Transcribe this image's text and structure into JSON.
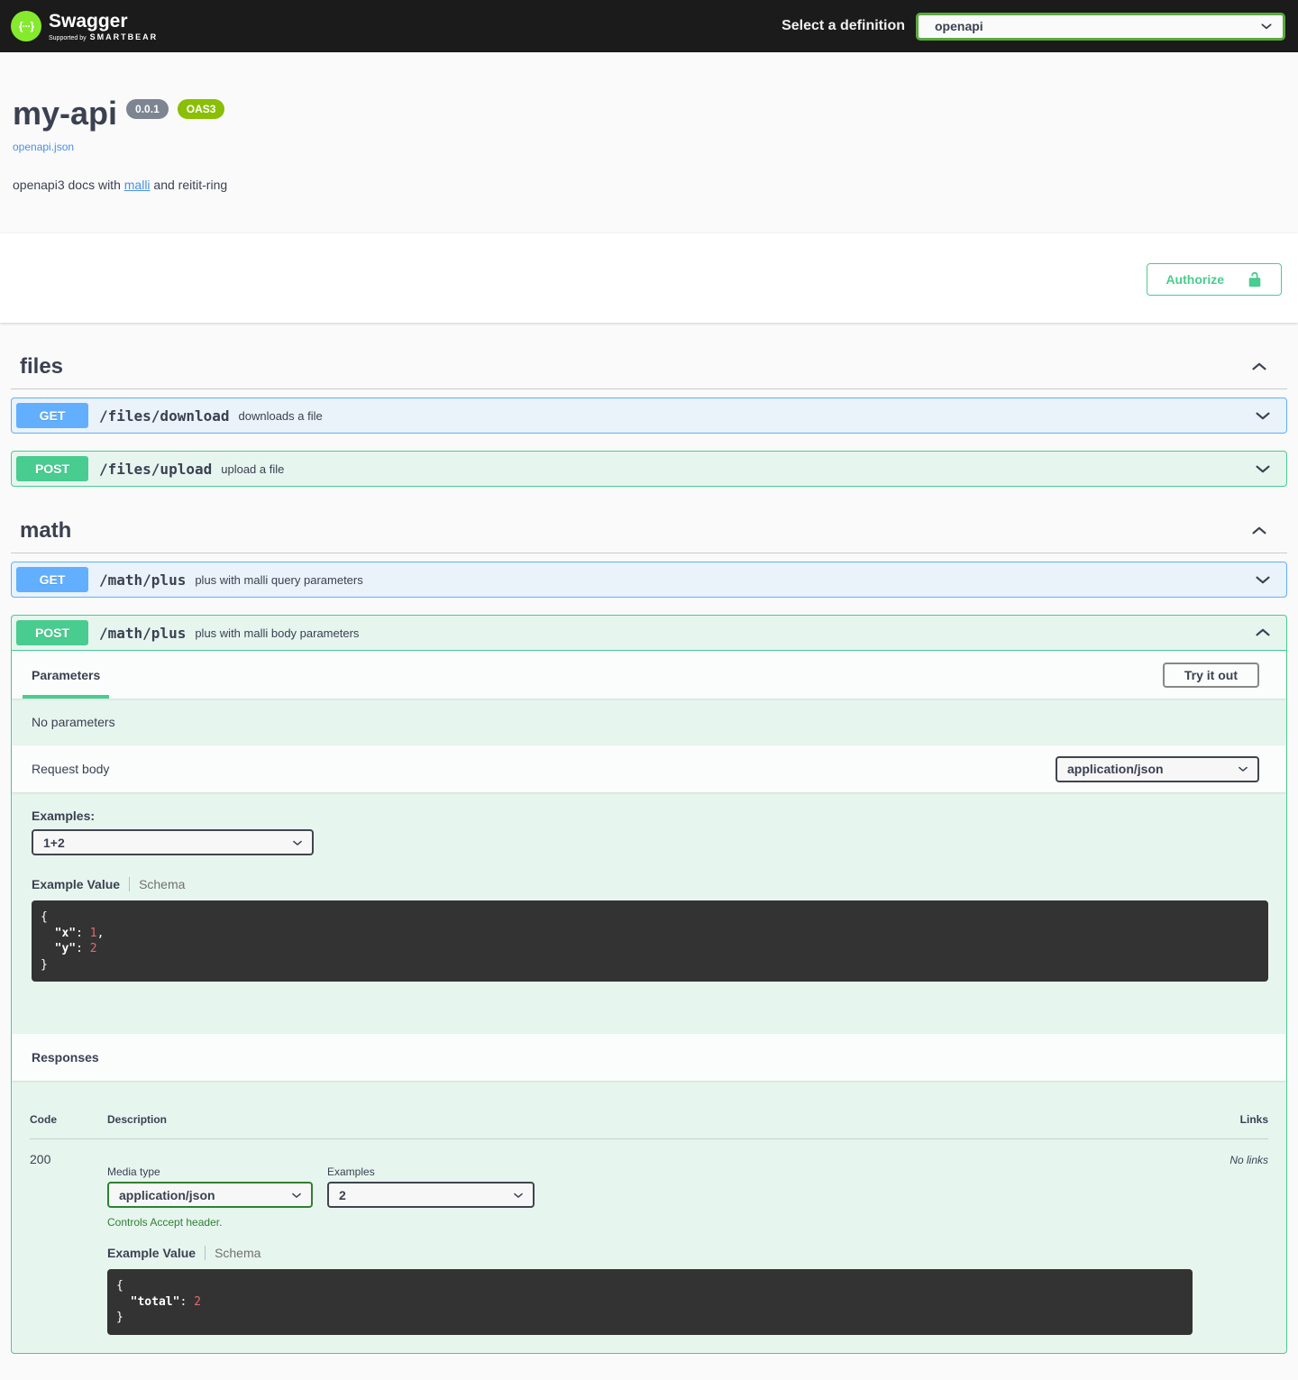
{
  "topbar": {
    "brand": "Swagger",
    "logo_glyph": "{···}",
    "supported_by": "Supported by",
    "supported_brand": "SMARTBEAR",
    "select_label": "Select a definition",
    "selected_definition": "openapi"
  },
  "info": {
    "title": "my-api",
    "version_badge": "0.0.1",
    "oas_badge": "OAS3",
    "spec_link": "openapi.json",
    "description": {
      "prefix": "openapi3 docs with ",
      "link": "malli",
      "suffix": " and reitit-ring"
    }
  },
  "scheme": {
    "authorize_label": "Authorize"
  },
  "sections": [
    {
      "title": "files",
      "endpoints": [
        {
          "method": "GET",
          "path": "/files/download",
          "summary": "downloads a file"
        },
        {
          "method": "POST",
          "path": "/files/upload",
          "summary": "upload a file"
        }
      ]
    },
    {
      "title": "math",
      "endpoints": [
        {
          "method": "GET",
          "path": "/math/plus",
          "summary": "plus with malli query parameters"
        },
        {
          "method": "POST",
          "path": "/math/plus",
          "summary": "plus with malli body parameters"
        }
      ]
    }
  ],
  "operation": {
    "parameters_tab": "Parameters",
    "try_it_out": "Try it out",
    "no_parameters": "No parameters",
    "request_body": {
      "label": "Request body",
      "media_type": "application/json",
      "examples_label": "Examples:",
      "selected_example": "1+2",
      "example_value_tab": "Example Value",
      "schema_tab": "Schema",
      "example_json": "{\n  \"x\": 1,\n  \"y\": 2\n}"
    },
    "responses": {
      "title": "Responses",
      "col_code": "Code",
      "col_description": "Description",
      "col_links": "Links",
      "row": {
        "code": "200",
        "links": "No links",
        "media_type_label": "Media type",
        "media_type": "application/json",
        "examples_label": "Examples",
        "selected_example": "2",
        "accept_note": "Controls Accept header.",
        "example_value_tab": "Example Value",
        "schema_tab": "Schema",
        "example_json": "{\n  \"total\": 2\n}"
      }
    }
  },
  "colors": {
    "topbar_bg": "#1b1b1b",
    "logo_green": "#85ea2d",
    "get_blue": "#61affe",
    "post_green": "#49cc90",
    "version_badge_bg": "#7d8492",
    "oas_badge_bg": "#89bf04",
    "link_blue": "#4990e2",
    "accept_green": "#2f8132",
    "code_bg": "#333333",
    "code_number": "#e06c6c",
    "text": "#3b4151"
  }
}
